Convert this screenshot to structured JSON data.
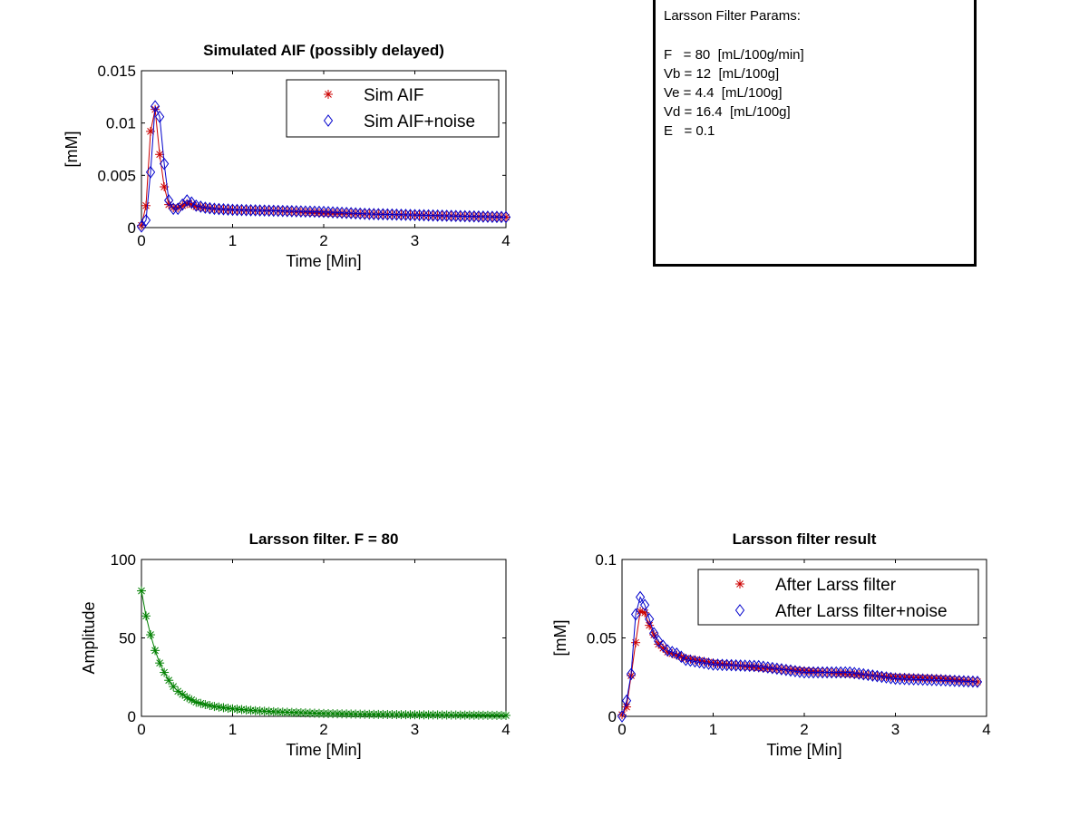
{
  "params_box": {
    "title": "Larsson Filter Params:",
    "lines": [
      "F   = 80  [mL/100g/min]",
      "Vb = 12  [mL/100g]",
      "Ve = 4.4  [mL/100g]",
      "Vd = 16.4  [mL/100g]",
      "E   = 0.1"
    ]
  },
  "chart_data": [
    {
      "type": "line",
      "title": "Simulated AIF (possibly delayed)",
      "xlabel": "Time [Min]",
      "ylabel": "[mM]",
      "xlim": [
        0,
        4
      ],
      "ylim": [
        0,
        0.015
      ],
      "xticks": [
        "0",
        "1",
        "2",
        "3",
        "4"
      ],
      "yticks": [
        "0",
        "0.005",
        "0.01",
        "0.015"
      ],
      "legend_position": "top-right",
      "grid": false,
      "x": [
        0,
        0.05,
        0.1,
        0.15,
        0.2,
        0.25,
        0.3,
        0.35,
        0.4,
        0.45,
        0.5,
        0.55,
        0.6,
        0.7,
        0.8,
        1.0,
        1.5,
        2.0,
        2.5,
        3.0,
        3.5,
        4.0
      ],
      "series": [
        {
          "name": "Sim AIF",
          "color": "#cc0000",
          "marker": "asterisk",
          "values": [
            0.0002,
            0.0021,
            0.0092,
            0.0113,
            0.007,
            0.0039,
            0.0022,
            0.0019,
            0.0019,
            0.0021,
            0.0023,
            0.0022,
            0.002,
            0.0019,
            0.0018,
            0.0017,
            0.0016,
            0.0014,
            0.0013,
            0.0012,
            0.0011,
            0.001
          ]
        },
        {
          "name": "Sim AIF+noise",
          "color": "#0000cc",
          "marker": "diamond",
          "values": [
            0.0001,
            0.0007,
            0.0053,
            0.0116,
            0.0106,
            0.0061,
            0.0026,
            0.0018,
            0.0018,
            0.0022,
            0.0026,
            0.0024,
            0.0021,
            0.0019,
            0.0018,
            0.0017,
            0.0016,
            0.0015,
            0.0013,
            0.0012,
            0.0011,
            0.001
          ]
        }
      ]
    },
    {
      "type": "line",
      "title": "Larsson filter. F = 80",
      "xlabel": "Time [Min]",
      "ylabel": "Amplitude",
      "xlim": [
        0,
        4
      ],
      "ylim": [
        0,
        100
      ],
      "xticks": [
        "0",
        "1",
        "2",
        "3",
        "4"
      ],
      "yticks": [
        "0",
        "50",
        "100"
      ],
      "grid": false,
      "x": [
        0,
        0.05,
        0.1,
        0.15,
        0.2,
        0.25,
        0.3,
        0.35,
        0.4,
        0.5,
        0.6,
        0.7,
        0.8,
        1.0,
        1.25,
        1.5,
        2.0,
        2.5,
        3.0,
        3.5,
        4.0
      ],
      "series": [
        {
          "color": "#008000",
          "marker": "asterisk",
          "values": [
            80,
            64,
            52,
            42,
            34,
            28,
            23,
            19,
            16,
            12,
            9,
            7.5,
            6.3,
            4.8,
            3.6,
            2.8,
            1.8,
            1.3,
            1.0,
            0.8,
            0.6
          ]
        }
      ]
    },
    {
      "type": "line",
      "title": "Larsson filter result",
      "xlabel": "Time [Min]",
      "ylabel": "[mM]",
      "xlim": [
        0,
        4
      ],
      "ylim": [
        0,
        0.1
      ],
      "xticks": [
        "0",
        "1",
        "2",
        "3",
        "4"
      ],
      "yticks": [
        "0",
        "0.05",
        "0.1"
      ],
      "legend_position": "top-right",
      "grid": false,
      "x": [
        0,
        0.05,
        0.1,
        0.15,
        0.2,
        0.25,
        0.3,
        0.35,
        0.4,
        0.5,
        0.6,
        0.7,
        0.8,
        1.0,
        1.5,
        2.0,
        2.5,
        3.0,
        3.5,
        3.9
      ],
      "series": [
        {
          "name": "After Larss filter",
          "color": "#cc0000",
          "marker": "asterisk",
          "values": [
            0.001,
            0.006,
            0.026,
            0.047,
            0.067,
            0.066,
            0.058,
            0.052,
            0.046,
            0.041,
            0.039,
            0.037,
            0.036,
            0.034,
            0.031,
            0.029,
            0.027,
            0.025,
            0.024,
            0.022
          ]
        },
        {
          "name": "After Larss filter+noise",
          "color": "#0000cc",
          "marker": "diamond",
          "values": [
            0.0,
            0.01,
            0.027,
            0.065,
            0.076,
            0.071,
            0.062,
            0.053,
            0.048,
            0.042,
            0.04,
            0.036,
            0.035,
            0.033,
            0.032,
            0.028,
            0.028,
            0.024,
            0.023,
            0.022
          ]
        }
      ]
    }
  ]
}
